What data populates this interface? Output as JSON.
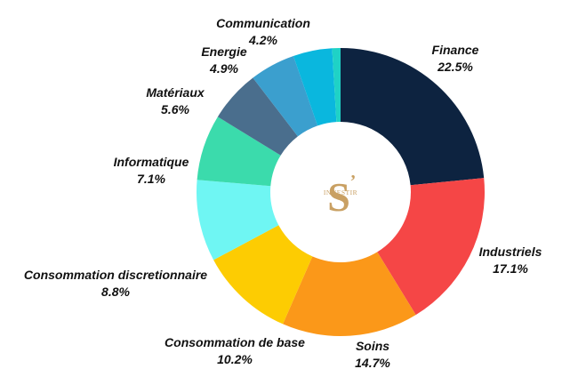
{
  "chart_data": {
    "type": "pie",
    "donut": true,
    "title": "",
    "legend": "none",
    "slices": [
      {
        "label": "Finance",
        "value": 22.5,
        "display": "22.5%",
        "color": "#0d2340"
      },
      {
        "label": "Industriels",
        "value": 17.1,
        "display": "17.1%",
        "color": "#f54646"
      },
      {
        "label": "Soins",
        "value": 14.7,
        "display": "14.7%",
        "color": "#fb9819"
      },
      {
        "label": "Consommation de base",
        "value": 10.2,
        "display": "10.2%",
        "color": "#fdcc02"
      },
      {
        "label": "Consommation discretionnaire",
        "value": 8.8,
        "display": "8.8%",
        "color": "#6ff6f3"
      },
      {
        "label": "Informatique",
        "value": 7.1,
        "display": "7.1%",
        "color": "#3bdbac"
      },
      {
        "label": "Matériaux",
        "value": 5.6,
        "display": "5.6%",
        "color": "#4a6e8d"
      },
      {
        "label": "Energie",
        "value": 4.9,
        "display": "4.9%",
        "color": "#3b9fce"
      },
      {
        "label": "Communication",
        "value": 4.2,
        "display": "4.2%",
        "color": "#0ab7de"
      },
      {
        "label": "",
        "value": 0.9,
        "display": "",
        "color": "#1fd2c6"
      }
    ]
  },
  "logo": {
    "letter": "S",
    "apostrophe": "’",
    "word": "INVESTIR",
    "color": "#c9a063"
  }
}
